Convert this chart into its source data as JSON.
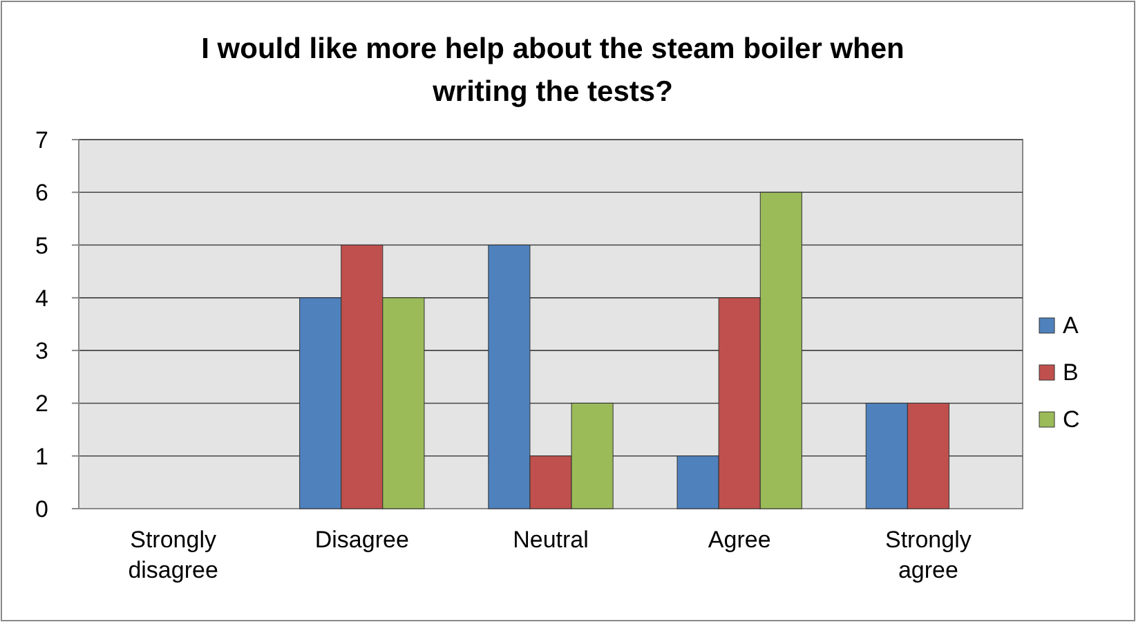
{
  "chart_data": {
    "type": "bar",
    "title": "I would like more help about the steam boiler when writing the tests?",
    "categories": [
      "Strongly disagree",
      "Disagree",
      "Neutral",
      "Agree",
      "Strongly agree"
    ],
    "series": [
      {
        "name": "A",
        "color": "#4f81bd",
        "values": [
          0,
          4,
          5,
          1,
          2
        ]
      },
      {
        "name": "B",
        "color": "#c0504d",
        "values": [
          0,
          5,
          1,
          4,
          2
        ]
      },
      {
        "name": "C",
        "color": "#9bbb59",
        "values": [
          0,
          4,
          2,
          6,
          0
        ]
      }
    ],
    "ylim": [
      0,
      7
    ],
    "yticks": [
      0,
      1,
      2,
      3,
      4,
      5,
      6,
      7
    ],
    "grid": "y",
    "legend": "right"
  }
}
